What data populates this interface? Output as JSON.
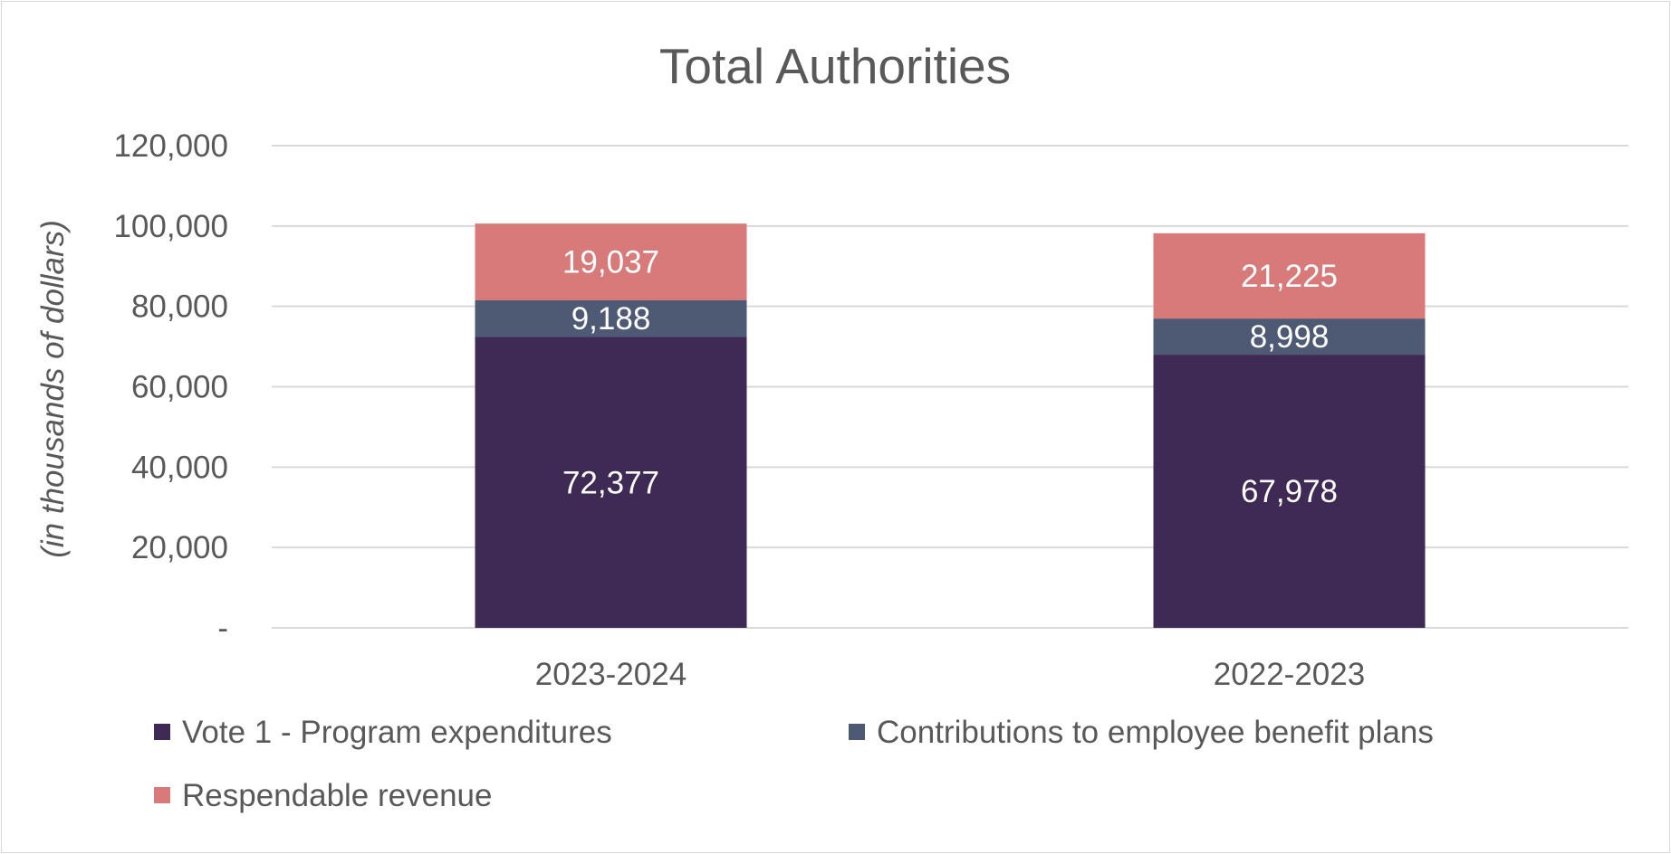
{
  "chart_data": {
    "type": "stacked-bar",
    "title": "Total Authorities",
    "ylabel": "(in thousands of dollars)",
    "xlabel": "",
    "categories": [
      "2023-2024",
      "2022-2023"
    ],
    "series": [
      {
        "name": "Vote 1 - Program expenditures",
        "values": [
          72377,
          67978
        ],
        "labels": [
          "72,377",
          "67,978"
        ],
        "color": "#3F2A55"
      },
      {
        "name": "Contributions to employee benefit plans",
        "values": [
          9188,
          8998
        ],
        "labels": [
          "9,188",
          "8,998"
        ],
        "color": "#4E5A74"
      },
      {
        "name": "Respendable revenue",
        "values": [
          19037,
          21225
        ],
        "labels": [
          "19,037",
          "21,225"
        ],
        "color": "#D97A7A"
      }
    ],
    "ylim": [
      0,
      120000
    ],
    "yticks": [
      0,
      20000,
      40000,
      60000,
      80000,
      100000,
      120000
    ],
    "ytick_labels": [
      "-",
      "20,000",
      "40,000",
      "60,000",
      "80,000",
      "100,000",
      "120,000"
    ],
    "grid": true,
    "legend_position": "bottom"
  }
}
